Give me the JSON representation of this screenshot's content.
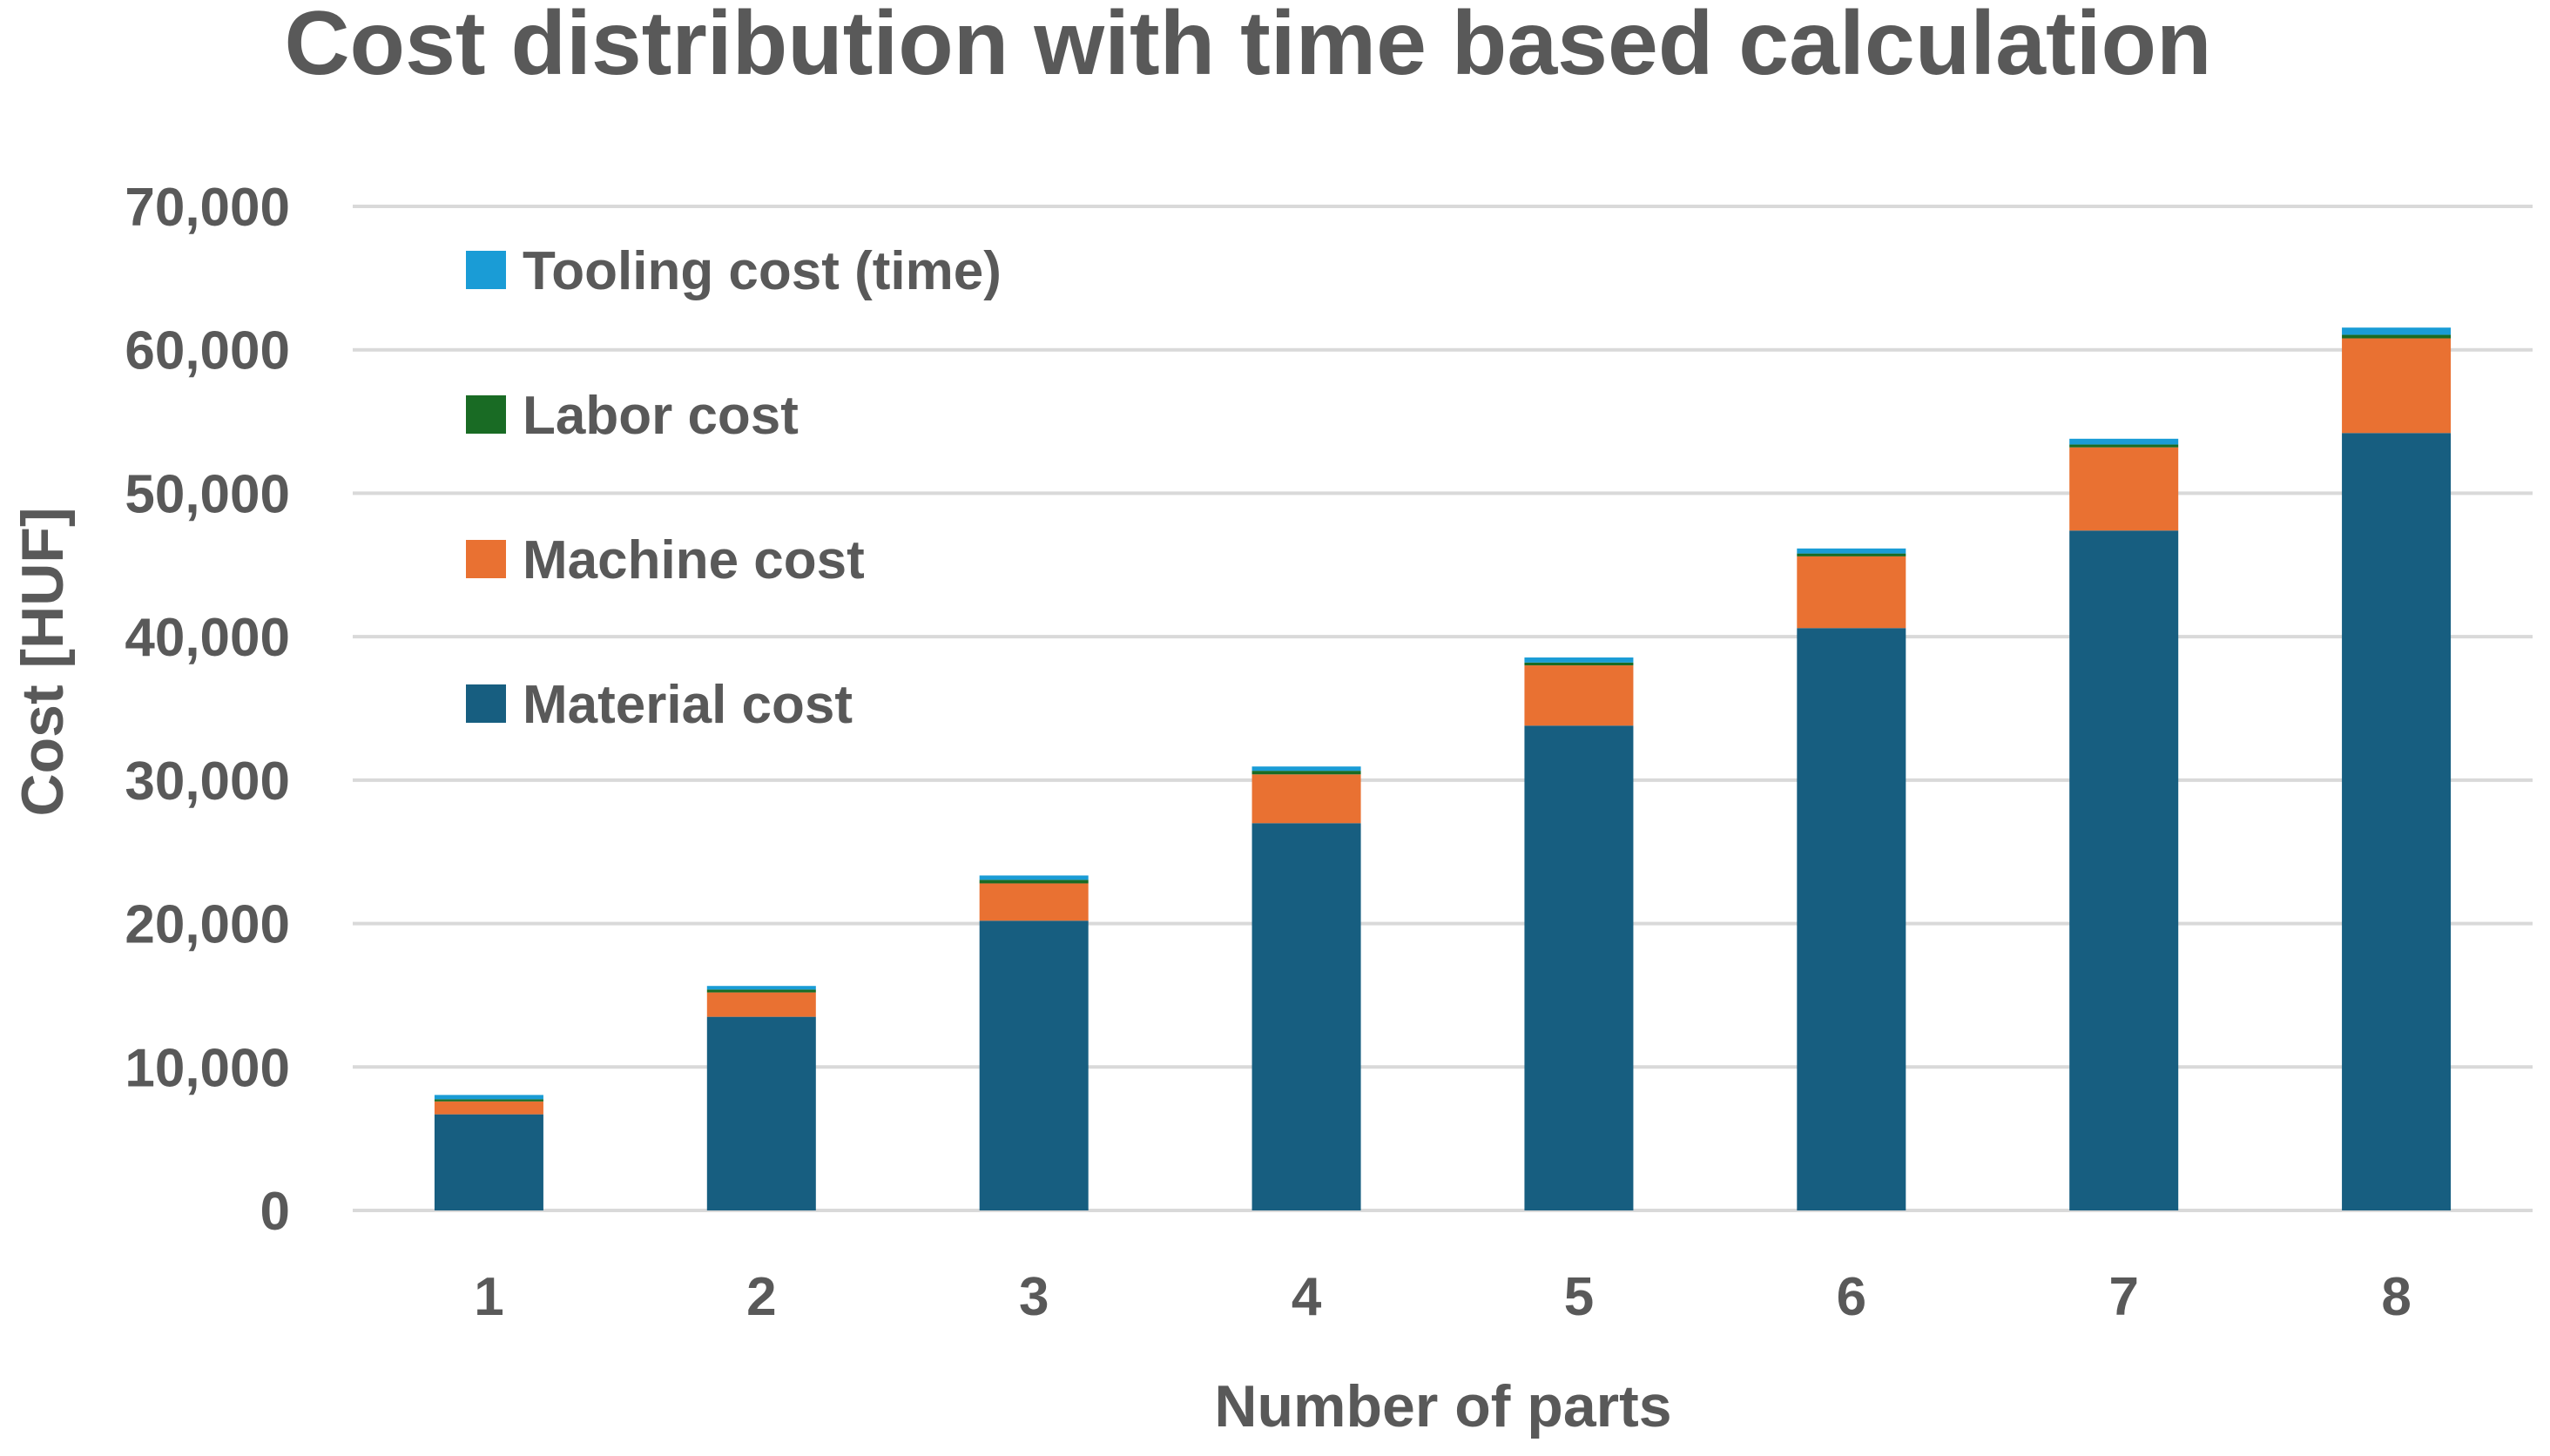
{
  "chart_data": {
    "type": "bar",
    "stacked": true,
    "title": "Cost distribution with time based calculation",
    "xlabel": "Number of parts",
    "ylabel": "Cost [HUF]",
    "ylim": [
      0,
      70000
    ],
    "yticks": [
      0,
      10000,
      20000,
      30000,
      40000,
      50000,
      60000,
      70000
    ],
    "ytick_labels": [
      "0",
      "10,000",
      "20,000",
      "30,000",
      "40,000",
      "50,000",
      "60,000",
      "70,000"
    ],
    "categories": [
      "1",
      "2",
      "3",
      "4",
      "5",
      "6",
      "7",
      "8"
    ],
    "grid": true,
    "legend_position": "top-left",
    "series": [
      {
        "name": "Material cost",
        "color": "#175E80",
        "values": [
          6700,
          13500,
          20200,
          27000,
          33800,
          40600,
          47400,
          54200
        ]
      },
      {
        "name": "Machine cost",
        "color": "#E97132",
        "values": [
          900,
          1700,
          2600,
          3400,
          4200,
          5000,
          5800,
          6600
        ]
      },
      {
        "name": "Labor cost",
        "color": "#196B24",
        "values": [
          150,
          200,
          250,
          250,
          200,
          200,
          200,
          250
        ]
      },
      {
        "name": "Tooling cost (time)",
        "color": "#1A9CD6",
        "values": [
          300,
          250,
          300,
          300,
          350,
          350,
          400,
          500
        ]
      }
    ]
  }
}
